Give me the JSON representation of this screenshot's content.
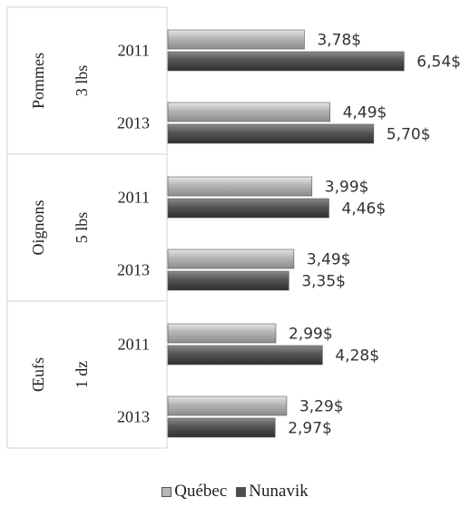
{
  "chart_data": {
    "type": "bar",
    "orientation": "horizontal",
    "groups": [
      {
        "product": "Pommes",
        "unit": "3 lbs",
        "years": [
          "2011",
          "2013"
        ]
      },
      {
        "product": "Oignons",
        "unit": "5 lbs",
        "years": [
          "2011",
          "2013"
        ]
      },
      {
        "product": "Œufs",
        "unit": "1 dz",
        "years": [
          "2011",
          "2013"
        ]
      }
    ],
    "series": [
      {
        "name": "Québec",
        "color": "#a6a6a6",
        "values": [
          3.78,
          4.49,
          3.99,
          3.49,
          2.99,
          3.29
        ],
        "labels": [
          "3,78$",
          "4,49$",
          "3,99$",
          "3,49$",
          "2,99$",
          "3,29$"
        ]
      },
      {
        "name": "Nunavik",
        "color": "#555555",
        "values": [
          6.54,
          5.7,
          4.46,
          3.35,
          4.28,
          2.97
        ],
        "labels": [
          "6,54$",
          "5,70$",
          "4,46$",
          "3,35$",
          "4,28$",
          "2,97$"
        ]
      }
    ],
    "xlim": [
      0,
      7
    ],
    "legend_position": "bottom",
    "grid": false
  },
  "legend": {
    "quebec": "Québec",
    "nunavik": "Nunavik"
  }
}
